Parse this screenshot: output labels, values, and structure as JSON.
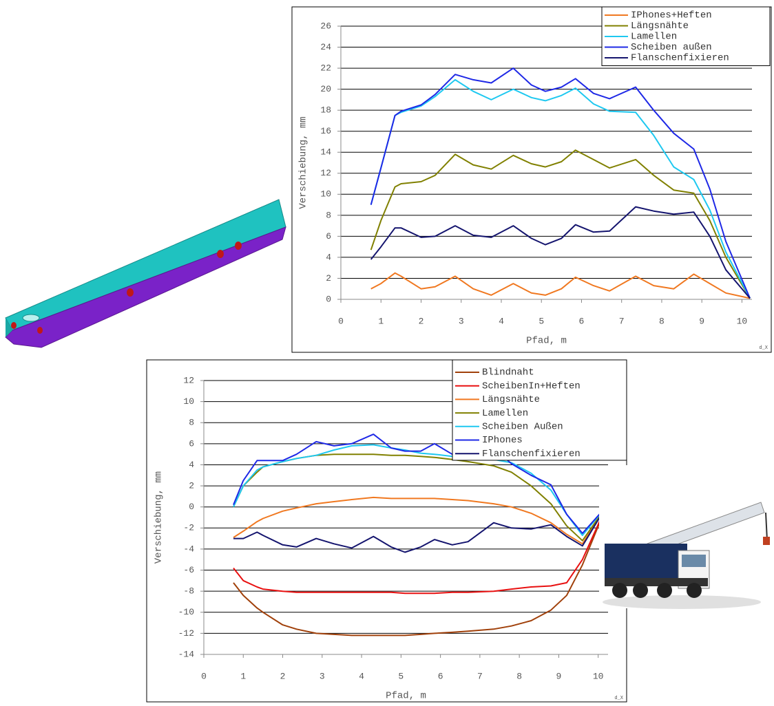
{
  "chart_data": [
    {
      "type": "line",
      "x_label": "Pfad, m",
      "y_label": "Verschiebung, mm",
      "footnote": "d_X",
      "x": [
        0.75,
        1,
        1.35,
        1.5,
        2,
        2.35,
        2.85,
        3.3,
        3.75,
        4.3,
        4.75,
        5.1,
        5.5,
        5.85,
        6.3,
        6.7,
        7.35,
        7.8,
        8.3,
        8.8,
        9.2,
        9.6,
        10.2
      ],
      "xlim": [
        0,
        10.25
      ],
      "xticks": [
        0,
        1,
        2,
        3,
        4,
        5,
        6,
        7,
        8,
        9,
        10
      ],
      "ylim": [
        0,
        26
      ],
      "yticks": [
        0,
        2,
        4,
        6,
        8,
        10,
        12,
        14,
        16,
        18,
        20,
        22,
        24,
        26
      ],
      "grid": true,
      "legend": "top-right",
      "series": [
        {
          "name": "IPhones+Heften",
          "color": "#f07820",
          "values": [
            1.0,
            1.5,
            2.5,
            2.2,
            1.0,
            1.2,
            2.2,
            1.0,
            0.4,
            1.5,
            0.6,
            0.4,
            1.0,
            2.1,
            1.3,
            0.8,
            2.2,
            1.3,
            1.0,
            2.4,
            1.5,
            0.6,
            0.1
          ]
        },
        {
          "name": "Längsnähte",
          "color": "#808000",
          "values": [
            4.7,
            7.5,
            10.7,
            11,
            11.2,
            11.8,
            13.8,
            12.8,
            12.4,
            13.7,
            12.9,
            12.6,
            13.1,
            14.2,
            13.3,
            12.5,
            13.3,
            11.8,
            10.4,
            10.1,
            7.5,
            4,
            0.1
          ]
        },
        {
          "name": "Lamellen",
          "color": "#1ec8f0",
          "values": [
            9,
            12.5,
            17.5,
            17.8,
            18.4,
            19.3,
            20.9,
            19.8,
            19,
            20,
            19.2,
            18.9,
            19.4,
            20.1,
            18.6,
            17.9,
            17.8,
            15.6,
            12.6,
            11.4,
            8.5,
            4.5,
            0.1
          ]
        },
        {
          "name": "Scheiben außen",
          "color": "#1e28e6",
          "values": [
            9,
            12.5,
            17.5,
            17.9,
            18.5,
            19.5,
            21.4,
            20.9,
            20.6,
            22,
            20.4,
            19.8,
            20.2,
            21,
            19.6,
            19.1,
            20.2,
            18,
            15.8,
            14.3,
            10.5,
            5.5,
            0.1
          ]
        },
        {
          "name": "Flanschenfixieren",
          "color": "#14146e",
          "values": [
            3.8,
            5,
            6.8,
            6.8,
            5.9,
            6,
            7,
            6.1,
            5.9,
            7,
            5.8,
            5.2,
            5.8,
            7.1,
            6.4,
            6.5,
            8.8,
            8.4,
            8.1,
            8.3,
            6,
            2.8,
            0.1
          ]
        }
      ]
    },
    {
      "type": "line",
      "x_label": "Pfad, m",
      "y_label": "Verschiebung, mm",
      "footnote": "d_X",
      "x": [
        0.75,
        1,
        1.35,
        1.5,
        2,
        2.35,
        2.85,
        3.3,
        3.75,
        4.3,
        4.75,
        5.1,
        5.5,
        5.85,
        6.3,
        6.7,
        7.35,
        7.8,
        8.3,
        8.8,
        9.2,
        9.6,
        10.2
      ],
      "xlim": [
        0,
        10.25
      ],
      "xticks": [
        0,
        1,
        2,
        3,
        4,
        5,
        6,
        7,
        8,
        9,
        10
      ],
      "ylim": [
        -14,
        12
      ],
      "yticks": [
        -14,
        -12,
        -10,
        -8,
        -6,
        -4,
        -2,
        0,
        2,
        4,
        6,
        8,
        10,
        12
      ],
      "grid": true,
      "legend": "top-right",
      "series": [
        {
          "name": "Blindnaht",
          "color": "#a0400a",
          "values": [
            -7.2,
            -8.4,
            -9.6,
            -10,
            -11.2,
            -11.6,
            -12,
            -12.1,
            -12.2,
            -12.2,
            -12.2,
            -12.2,
            -12.1,
            -12,
            -11.9,
            -11.8,
            -11.6,
            -11.3,
            -10.8,
            -9.8,
            -8.4,
            -5.5,
            0
          ]
        },
        {
          "name": "ScheibenIn+Heften",
          "color": "#e81010",
          "values": [
            -5.8,
            -7,
            -7.6,
            -7.8,
            -8,
            -8.1,
            -8.1,
            -8.1,
            -8.1,
            -8.1,
            -8.1,
            -8.2,
            -8.2,
            -8.2,
            -8.1,
            -8.1,
            -8,
            -7.8,
            -7.6,
            -7.5,
            -7.2,
            -5,
            0
          ]
        },
        {
          "name": "Längsnähte",
          "color": "#f07820",
          "values": [
            -2.9,
            -2.3,
            -1.4,
            -1.1,
            -0.4,
            -0.1,
            0.3,
            0.5,
            0.7,
            0.9,
            0.8,
            0.8,
            0.8,
            0.8,
            0.7,
            0.6,
            0.3,
            0,
            -0.6,
            -1.5,
            -2.6,
            -3.5,
            0
          ]
        },
        {
          "name": "Lamellen",
          "color": "#808000",
          "values": [
            0,
            2,
            3.3,
            3.8,
            4.3,
            4.6,
            4.9,
            5,
            5,
            5,
            4.9,
            4.9,
            4.8,
            4.7,
            4.5,
            4.3,
            3.9,
            3.3,
            2,
            0.3,
            -1.8,
            -3.2,
            0
          ]
        },
        {
          "name": "Scheiben Außen",
          "color": "#1ec8f0",
          "values": [
            0,
            2,
            3.5,
            3.8,
            4.3,
            4.6,
            4.9,
            5.4,
            5.8,
            5.9,
            5.6,
            5.4,
            5.1,
            5,
            4.8,
            4.7,
            4.5,
            4.2,
            3.2,
            1.6,
            -0.7,
            -2.7,
            0
          ]
        },
        {
          "name": "IPhones",
          "color": "#1e28e6",
          "values": [
            0.2,
            2.5,
            4.4,
            4.4,
            4.4,
            5,
            6.2,
            5.8,
            6,
            6.9,
            5.6,
            5.3,
            5.3,
            6,
            5,
            4.9,
            5.6,
            4.1,
            3,
            2.1,
            -0.7,
            -2.5,
            0
          ]
        },
        {
          "name": "Flanschenfixieren",
          "color": "#14146e",
          "values": [
            -3,
            -3,
            -2.4,
            -2.7,
            -3.6,
            -3.8,
            -3,
            -3.5,
            -3.9,
            -2.8,
            -3.8,
            -4.3,
            -3.8,
            -3.1,
            -3.6,
            -3.3,
            -1.5,
            -2,
            -2.1,
            -1.7,
            -2.8,
            -3.7,
            0
          ]
        }
      ]
    }
  ]
}
